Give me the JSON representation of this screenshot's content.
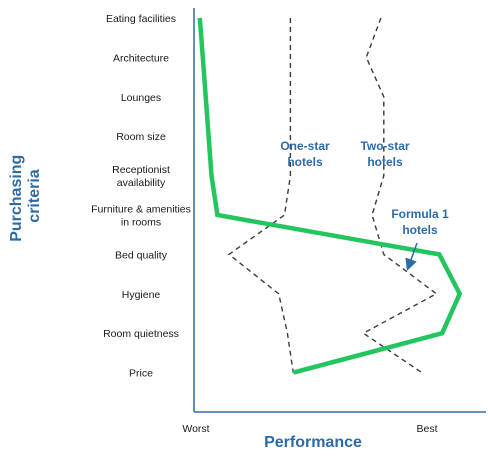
{
  "chart_data": {
    "type": "line",
    "title": "",
    "xlabel": "Performance",
    "ylabel": [
      "Purchasing",
      "criteria"
    ],
    "x_axis_ends": {
      "low": "Worst",
      "high": "Best"
    },
    "xlim": [
      0,
      10
    ],
    "grid": false,
    "legend": "none",
    "categories": [
      [
        "Eating facilities"
      ],
      [
        "Architecture"
      ],
      [
        "Lounges"
      ],
      [
        "Room size"
      ],
      [
        "Receptionist",
        "availability"
      ],
      [
        "Furniture & amenities",
        "in rooms"
      ],
      [
        "Bed quality"
      ],
      [
        "Hygiene"
      ],
      [
        "Room quietness"
      ],
      [
        "Price"
      ]
    ],
    "series": [
      {
        "name": "One-star hotels",
        "label_lines": [
          "One-star",
          "hotels"
        ],
        "style": "dashed",
        "color": "#3a3a3a",
        "values": [
          3.3,
          3.3,
          3.3,
          3.3,
          3.3,
          3.1,
          1.2,
          2.9,
          3.2,
          3.4
        ]
      },
      {
        "name": "Two-star hotels",
        "label_lines": [
          "Two-star",
          "hotels"
        ],
        "style": "dashed",
        "color": "#3a3a3a",
        "values": [
          6.4,
          5.9,
          6.5,
          6.5,
          6.5,
          6.1,
          6.5,
          8.3,
          5.8,
          7.8
        ]
      },
      {
        "name": "Formula 1 hotels",
        "label_lines": [
          "Formula 1",
          "hotels"
        ],
        "style": "solid",
        "color": "#22c55e",
        "values": [
          0.2,
          0.3,
          0.4,
          0.5,
          0.6,
          0.8,
          8.4,
          9.1,
          8.5,
          3.4
        ]
      }
    ]
  }
}
